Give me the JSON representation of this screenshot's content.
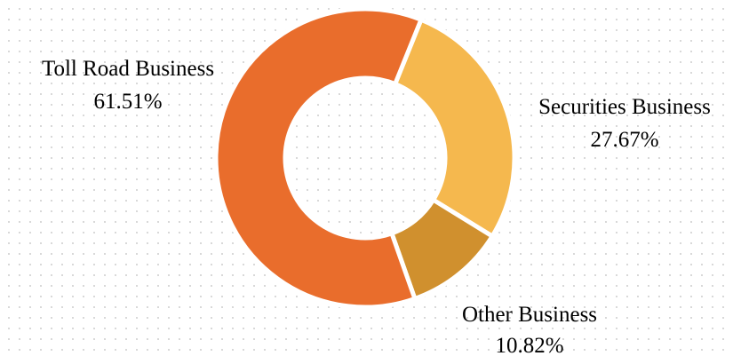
{
  "chart_data": {
    "type": "pie",
    "donut": true,
    "title": "",
    "legend": "none",
    "grid": false,
    "slices": [
      {
        "label": "Securities Business",
        "value": 27.67,
        "value_label": "27.67%",
        "color": "#F5B84E"
      },
      {
        "label": "Other Business",
        "value": 10.82,
        "value_label": "10.82%",
        "color": "#D0902E"
      },
      {
        "label": "Toll Road Business",
        "value": 61.51,
        "value_label": "61.51%",
        "color": "#E96D2C"
      }
    ]
  }
}
